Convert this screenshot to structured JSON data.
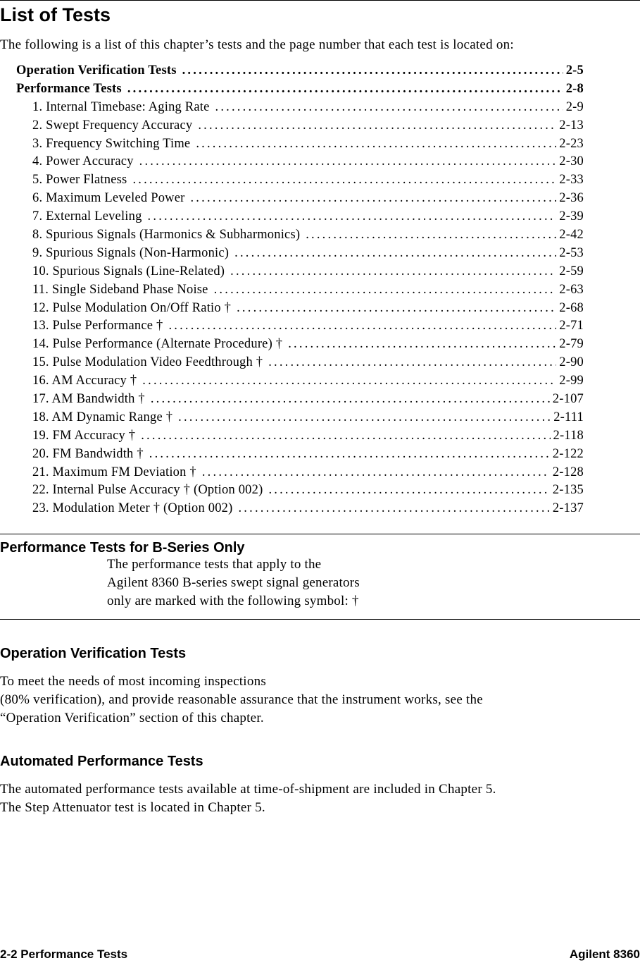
{
  "title": "List of Tests",
  "intro": "The following is a list of this chapter’s tests and the page number that each test is located on:",
  "toc": [
    {
      "label": "Operation Verification Tests",
      "page": "2-5",
      "bold": true
    },
    {
      "label": "Performance Tests",
      "page": "2-8",
      "bold": true
    },
    {
      "label": "1.  Internal Timebase: Aging Rate",
      "page": "2-9"
    },
    {
      "label": "2.  Swept Frequency Accuracy",
      "page": "2-13"
    },
    {
      "label": "3.  Frequency Switching Time",
      "page": "2-23"
    },
    {
      "label": "4.  Power Accuracy",
      "page": "2-30"
    },
    {
      "label": "5.  Power Flatness",
      "page": "2-33"
    },
    {
      "label": "6.  Maximum Leveled Power",
      "page": "2-36"
    },
    {
      "label": "7.  External Leveling",
      "page": "2-39"
    },
    {
      "label": "8.  Spurious Signals (Harmonics & Subharmonics)",
      "page": "2-42"
    },
    {
      "label": "9.  Spurious Signals (Non-Harmonic)",
      "page": "2-53"
    },
    {
      "label": "10.  Spurious Signals (Line-Related)",
      "page": "2-59"
    },
    {
      "label": "11.  Single Sideband Phase Noise",
      "page": "2-63"
    },
    {
      "label": "12.  Pulse Modulation On/Off Ratio †",
      "page": "2-68"
    },
    {
      "label": "13.  Pulse Performance †",
      "page": "2-71"
    },
    {
      "label": "14.  Pulse Performance (Alternate Procedure) †",
      "page": "2-79"
    },
    {
      "label": "15.  Pulse Modulation Video Feedthrough †",
      "page": "2-90"
    },
    {
      "label": "16.  AM Accuracy †",
      "page": "2-99"
    },
    {
      "label": "17.  AM Bandwidth †",
      "page": "2-107"
    },
    {
      "label": "18.  AM Dynamic Range †",
      "page": "2-111"
    },
    {
      "label": "19.  FM Accuracy †",
      "page": "2-118"
    },
    {
      "label": "20.  FM Bandwidth †",
      "page": "2-122"
    },
    {
      "label": "21.  Maximum FM Deviation †",
      "page": "2-128"
    },
    {
      "label": "22.  Internal Pulse Accuracy † (Option 002)",
      "page": "2-135"
    },
    {
      "label": "23.  Modulation Meter † (Option 002)",
      "page": "2-137"
    }
  ],
  "bseries": {
    "heading": "Performance Tests for B-Series Only",
    "lines": [
      "The performance tests that apply to the",
      "Agilent 8360 B-series swept signal generators",
      "only are marked with the following symbol:    †"
    ]
  },
  "opverif": {
    "heading": "Operation Verification Tests",
    "lines": [
      "To meet the needs of most incoming inspections",
      "(80% verification), and provide reasonable assurance that the instrument works, see the",
      "“Operation Verification” section of this chapter."
    ]
  },
  "automated": {
    "heading": "Automated Performance Tests",
    "lines": [
      "The automated performance tests available at time-of-shipment are included in Chapter 5.",
      "The Step Attenuator test is located in Chapter 5."
    ]
  },
  "footer": {
    "left": "2-2   Performance Tests",
    "right": "Agilent 8360"
  }
}
